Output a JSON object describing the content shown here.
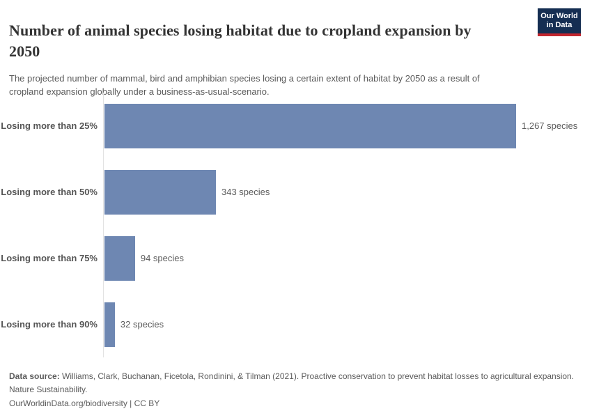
{
  "logo": {
    "line1": "Our World",
    "line2": "in Data",
    "bg_color": "#152e52",
    "accent_color": "#c2262e"
  },
  "header": {
    "title_line1": "Number of animal species losing habitat due to cropland expansion by",
    "title_line2": "2050",
    "subtitle_line1": "The projected number of mammal, bird and amphibian species losing a certain extent of habitat by 2050 as a result of",
    "subtitle_line2": "cropland expansion globally under a business-as-usual-scenario."
  },
  "chart_data": {
    "type": "bar",
    "orientation": "horizontal",
    "title": "Number of animal species losing habitat due to cropland expansion by 2050",
    "subtitle": "The projected number of mammal, bird and amphibian species losing a certain extent of habitat by 2050 as a result of cropland expansion globally under a business-as-usual-scenario.",
    "categories": [
      "Losing more than 25%",
      "Losing more than 50%",
      "Losing more than 75%",
      "Losing more than 90%"
    ],
    "values": [
      1267,
      343,
      94,
      32
    ],
    "value_labels": [
      "1,267 species",
      "343 species",
      "94 species",
      "32 species"
    ],
    "unit": "species",
    "bar_color": "#6e87b2",
    "axis_line_color": "#e2e2e2",
    "xlim": [
      0,
      1267
    ],
    "grid": false,
    "legend": "none",
    "x_axis_ticks_visible": false
  },
  "footer": {
    "source_label": "Data source:",
    "source_text": " Williams, Clark, Buchanan, Ficetola, Rondinini, & Tilman (2021). Proactive conservation to prevent habitat losses to agricultural expansion. Nature Sustainability.",
    "license_line": "OurWorldinData.org/biodiversity | CC BY"
  }
}
